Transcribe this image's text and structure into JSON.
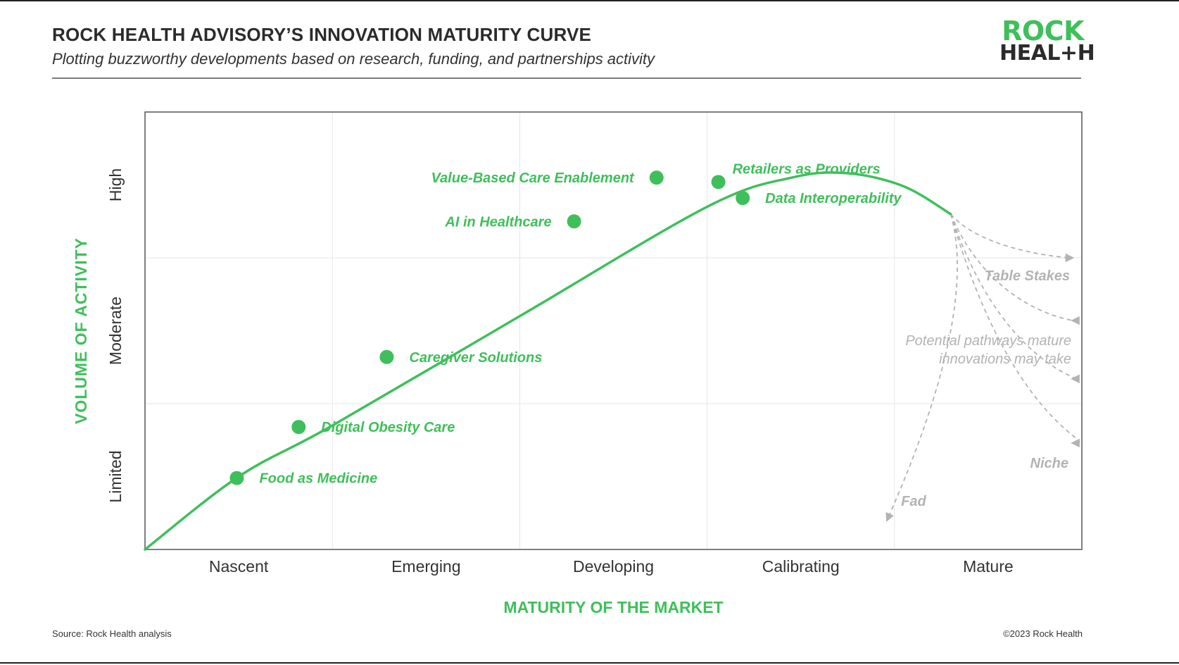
{
  "header": {
    "title": "ROCK HEALTH ADVISORY’S INNOVATION MATURITY CURVE",
    "subtitle": "Plotting buzzworthy developments based on research, funding, and partnerships activity"
  },
  "logo": {
    "line1": "ROCK",
    "line2": "HEAL+H"
  },
  "footer": {
    "source": "Source: Rock Health analysis",
    "copyright": "©2023 Rock Health"
  },
  "colors": {
    "accent": "#3fbf5b",
    "path_gray": "#b3b3b3",
    "text_dark": "#2b2b2b"
  },
  "chart_data": {
    "type": "line",
    "xlabel": "MATURITY OF THE MARKET",
    "ylabel": "VOLUME OF ACTIVITY",
    "x_categories": [
      "Nascent",
      "Emerging",
      "Developing",
      "Calibrating",
      "Mature"
    ],
    "y_categories": [
      "Limited",
      "Moderate",
      "High"
    ],
    "xlim": [
      0,
      5
    ],
    "ylim": [
      0,
      3
    ],
    "grid": true,
    "curve": [
      [
        0,
        0
      ],
      [
        0.5,
        0.5
      ],
      [
        1.0,
        0.85
      ],
      [
        2.0,
        1.6
      ],
      [
        3.0,
        2.35
      ],
      [
        3.45,
        2.55
      ],
      [
        3.75,
        2.58
      ],
      [
        4.05,
        2.49
      ],
      [
        4.3,
        2.3
      ]
    ],
    "points": [
      {
        "label": "Food as Medicine",
        "x": 0.49,
        "y": 0.49,
        "label_side": "right"
      },
      {
        "label": "Digital Obesity Care",
        "x": 0.82,
        "y": 0.84,
        "label_side": "right"
      },
      {
        "label": "Caregiver Solutions",
        "x": 1.29,
        "y": 1.32,
        "label_side": "right"
      },
      {
        "label": "AI in Healthcare",
        "x": 2.29,
        "y": 2.25,
        "label_side": "left"
      },
      {
        "label": "Value-Based Care Enablement",
        "x": 2.73,
        "y": 2.55,
        "label_side": "left"
      },
      {
        "label": "Retailers as Providers",
        "x": 3.06,
        "y": 2.52,
        "label_side": "above-right"
      },
      {
        "label": "Data Interoperability",
        "x": 3.19,
        "y": 2.41,
        "label_side": "right"
      }
    ],
    "pathways": [
      {
        "label": "Table Stakes",
        "end": [
          4.95,
          2.0
        ]
      },
      {
        "label": "",
        "end": [
          4.95,
          1.57
        ]
      },
      {
        "label": "",
        "end": [
          4.95,
          1.17
        ]
      },
      {
        "label": "Niche",
        "end": [
          4.95,
          0.73
        ]
      },
      {
        "label": "Fad",
        "end": [
          3.96,
          0.2
        ]
      }
    ],
    "pathway_note": "Potential pathways mature innovations may take"
  }
}
